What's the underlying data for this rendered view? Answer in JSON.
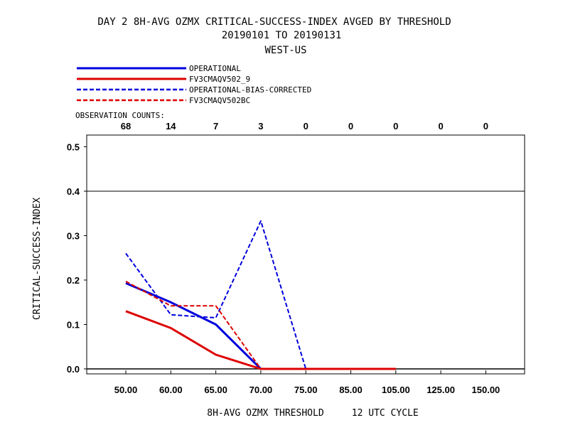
{
  "chart_data": {
    "type": "line",
    "title_lines": [
      "DAY 2   8H-AVG OZMX CRITICAL-SUCCESS-INDEX   AVGED BY THRESHOLD",
      "20190101 TO 20190131",
      "WEST-US"
    ],
    "xlabel": "8H-AVG OZMX THRESHOLD     12 UTC CYCLE",
    "ylabel": "CRITICAL-SUCCESS-INDEX",
    "categories": [
      "50.00",
      "60.00",
      "65.00",
      "70.00",
      "75.00",
      "85.00",
      "105.00",
      "125.00",
      "150.00"
    ],
    "observation_counts_label": "OBSERVATION COUNTS:",
    "observation_counts": [
      "68",
      "14",
      "7",
      "3",
      "0",
      "0",
      "0",
      "0",
      "0"
    ],
    "ylim": [
      0,
      0.52
    ],
    "yticks": [
      "0.0",
      "0.1",
      "0.2",
      "0.3",
      "0.4",
      "0.5"
    ],
    "reference_line": 0.4,
    "legend_placement": "top-left",
    "series": [
      {
        "name": "OPERATIONAL",
        "color": "#0000dd",
        "dash": "solid",
        "width": 3,
        "values": [
          0.193,
          0.15,
          0.1,
          0.0,
          null,
          null,
          null,
          null,
          null
        ]
      },
      {
        "name": "FV3CMAQV502_9",
        "color": "#dd0000",
        "dash": "solid",
        "width": 3,
        "values": [
          0.13,
          0.092,
          0.032,
          0.0,
          0.0,
          0.0,
          0.0,
          null,
          null
        ]
      },
      {
        "name": "OPERATIONAL-BIAS-CORRECTED",
        "color": "#0000dd",
        "dash": "dashed",
        "width": 2,
        "values": [
          0.26,
          0.122,
          0.115,
          0.333,
          0.0,
          null,
          null,
          null,
          null
        ]
      },
      {
        "name": "FV3CMAQV502BC",
        "color": "#dd0000",
        "dash": "dashed",
        "width": 2,
        "values": [
          0.197,
          0.142,
          0.142,
          0.0,
          null,
          null,
          null,
          null,
          null
        ]
      }
    ]
  }
}
